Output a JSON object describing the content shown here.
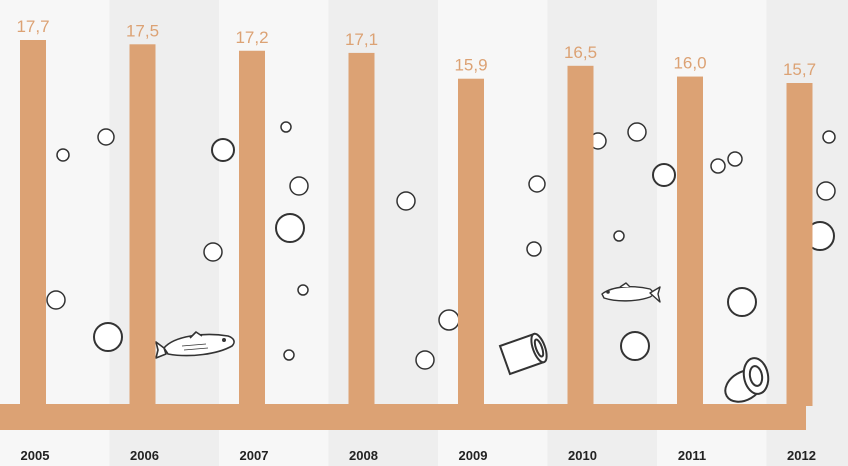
{
  "chart_data": {
    "type": "bar",
    "categories": [
      "2005",
      "2006",
      "2007",
      "2008",
      "2009",
      "2010",
      "2011",
      "2012"
    ],
    "values": [
      17.7,
      17.5,
      17.2,
      17.1,
      15.9,
      16.5,
      16.0,
      15.7
    ],
    "value_labels": [
      "17,7",
      "17,5",
      "17,2",
      "17,1",
      "15,9",
      "16,5",
      "16,0",
      "15,7"
    ],
    "title": "",
    "xlabel": "",
    "ylabel": "",
    "grid": false,
    "colors": {
      "bar": "#dca274",
      "value_label": "#dca274",
      "band_light": "#f7f7f7",
      "band_dark": "#eeeeee",
      "year_label": "#222222",
      "decoration_stroke": "#333333"
    },
    "decorations": [
      "bubble-icon",
      "fish-icon",
      "can-icon",
      "tuna-can-icon"
    ]
  }
}
